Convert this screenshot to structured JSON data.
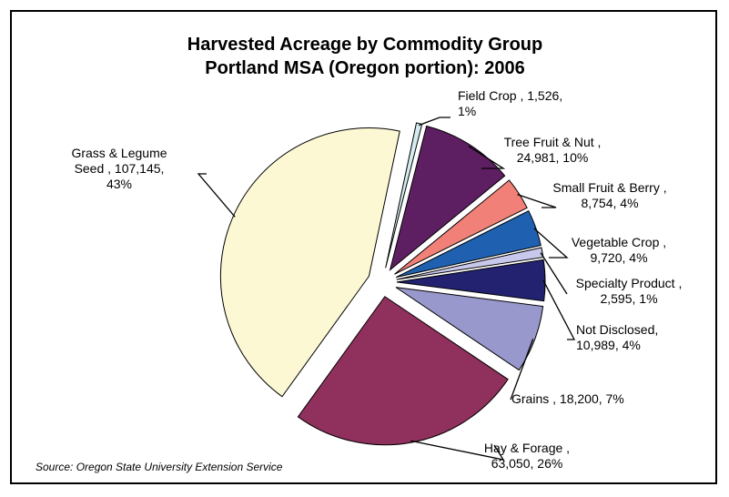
{
  "chart_data": {
    "type": "pie",
    "title": [
      "Harvested Acreage by Commodity Group",
      "Portland MSA (Oregon portion): 2006"
    ],
    "source": "Source: Oregon State University Extension Service",
    "slices": [
      {
        "name": "Field Crop",
        "value": 1526,
        "percent": "1%",
        "color": "#d4ecf0",
        "label_lines": [
          "Field Crop , 1,526,",
          "1%"
        ]
      },
      {
        "name": "Tree Fruit & Nut",
        "value": 24981,
        "percent": "10%",
        "color": "#5e1f62",
        "label_lines": [
          "Tree Fruit & Nut ,",
          "24,981, 10%"
        ]
      },
      {
        "name": "Small Fruit & Berry",
        "value": 8754,
        "percent": "4%",
        "color": "#f08078",
        "label_lines": [
          "Small Fruit & Berry ,",
          "8,754, 4%"
        ]
      },
      {
        "name": "Vegetable Crop",
        "value": 9720,
        "percent": "4%",
        "color": "#2060b0",
        "label_lines": [
          "Vegetable Crop ,",
          "9,720, 4%"
        ]
      },
      {
        "name": "Specialty Product",
        "value": 2595,
        "percent": "1%",
        "color": "#c8c8ec",
        "label_lines": [
          "Specialty Product ,",
          "2,595, 1%"
        ]
      },
      {
        "name": "Not Disclosed",
        "value": 10989,
        "percent": "4%",
        "color": "#222270",
        "label_lines": [
          "Not Disclosed,",
          "10,989, 4%"
        ]
      },
      {
        "name": "Grains",
        "value": 18200,
        "percent": "7%",
        "color": "#9898cc",
        "label_lines": [
          "Grains , 18,200, 7%"
        ]
      },
      {
        "name": "Hay & Forage",
        "value": 63050,
        "percent": "26%",
        "color": "#90305c",
        "label_lines": [
          "Hay & Forage ,",
          "63,050, 26%"
        ]
      },
      {
        "name": "Grass & Legume Seed",
        "value": 107145,
        "percent": "43%",
        "color": "#fcf8d4",
        "label_lines": [
          "Grass & Legume",
          "Seed , 107,145,",
          "43%"
        ]
      }
    ]
  }
}
